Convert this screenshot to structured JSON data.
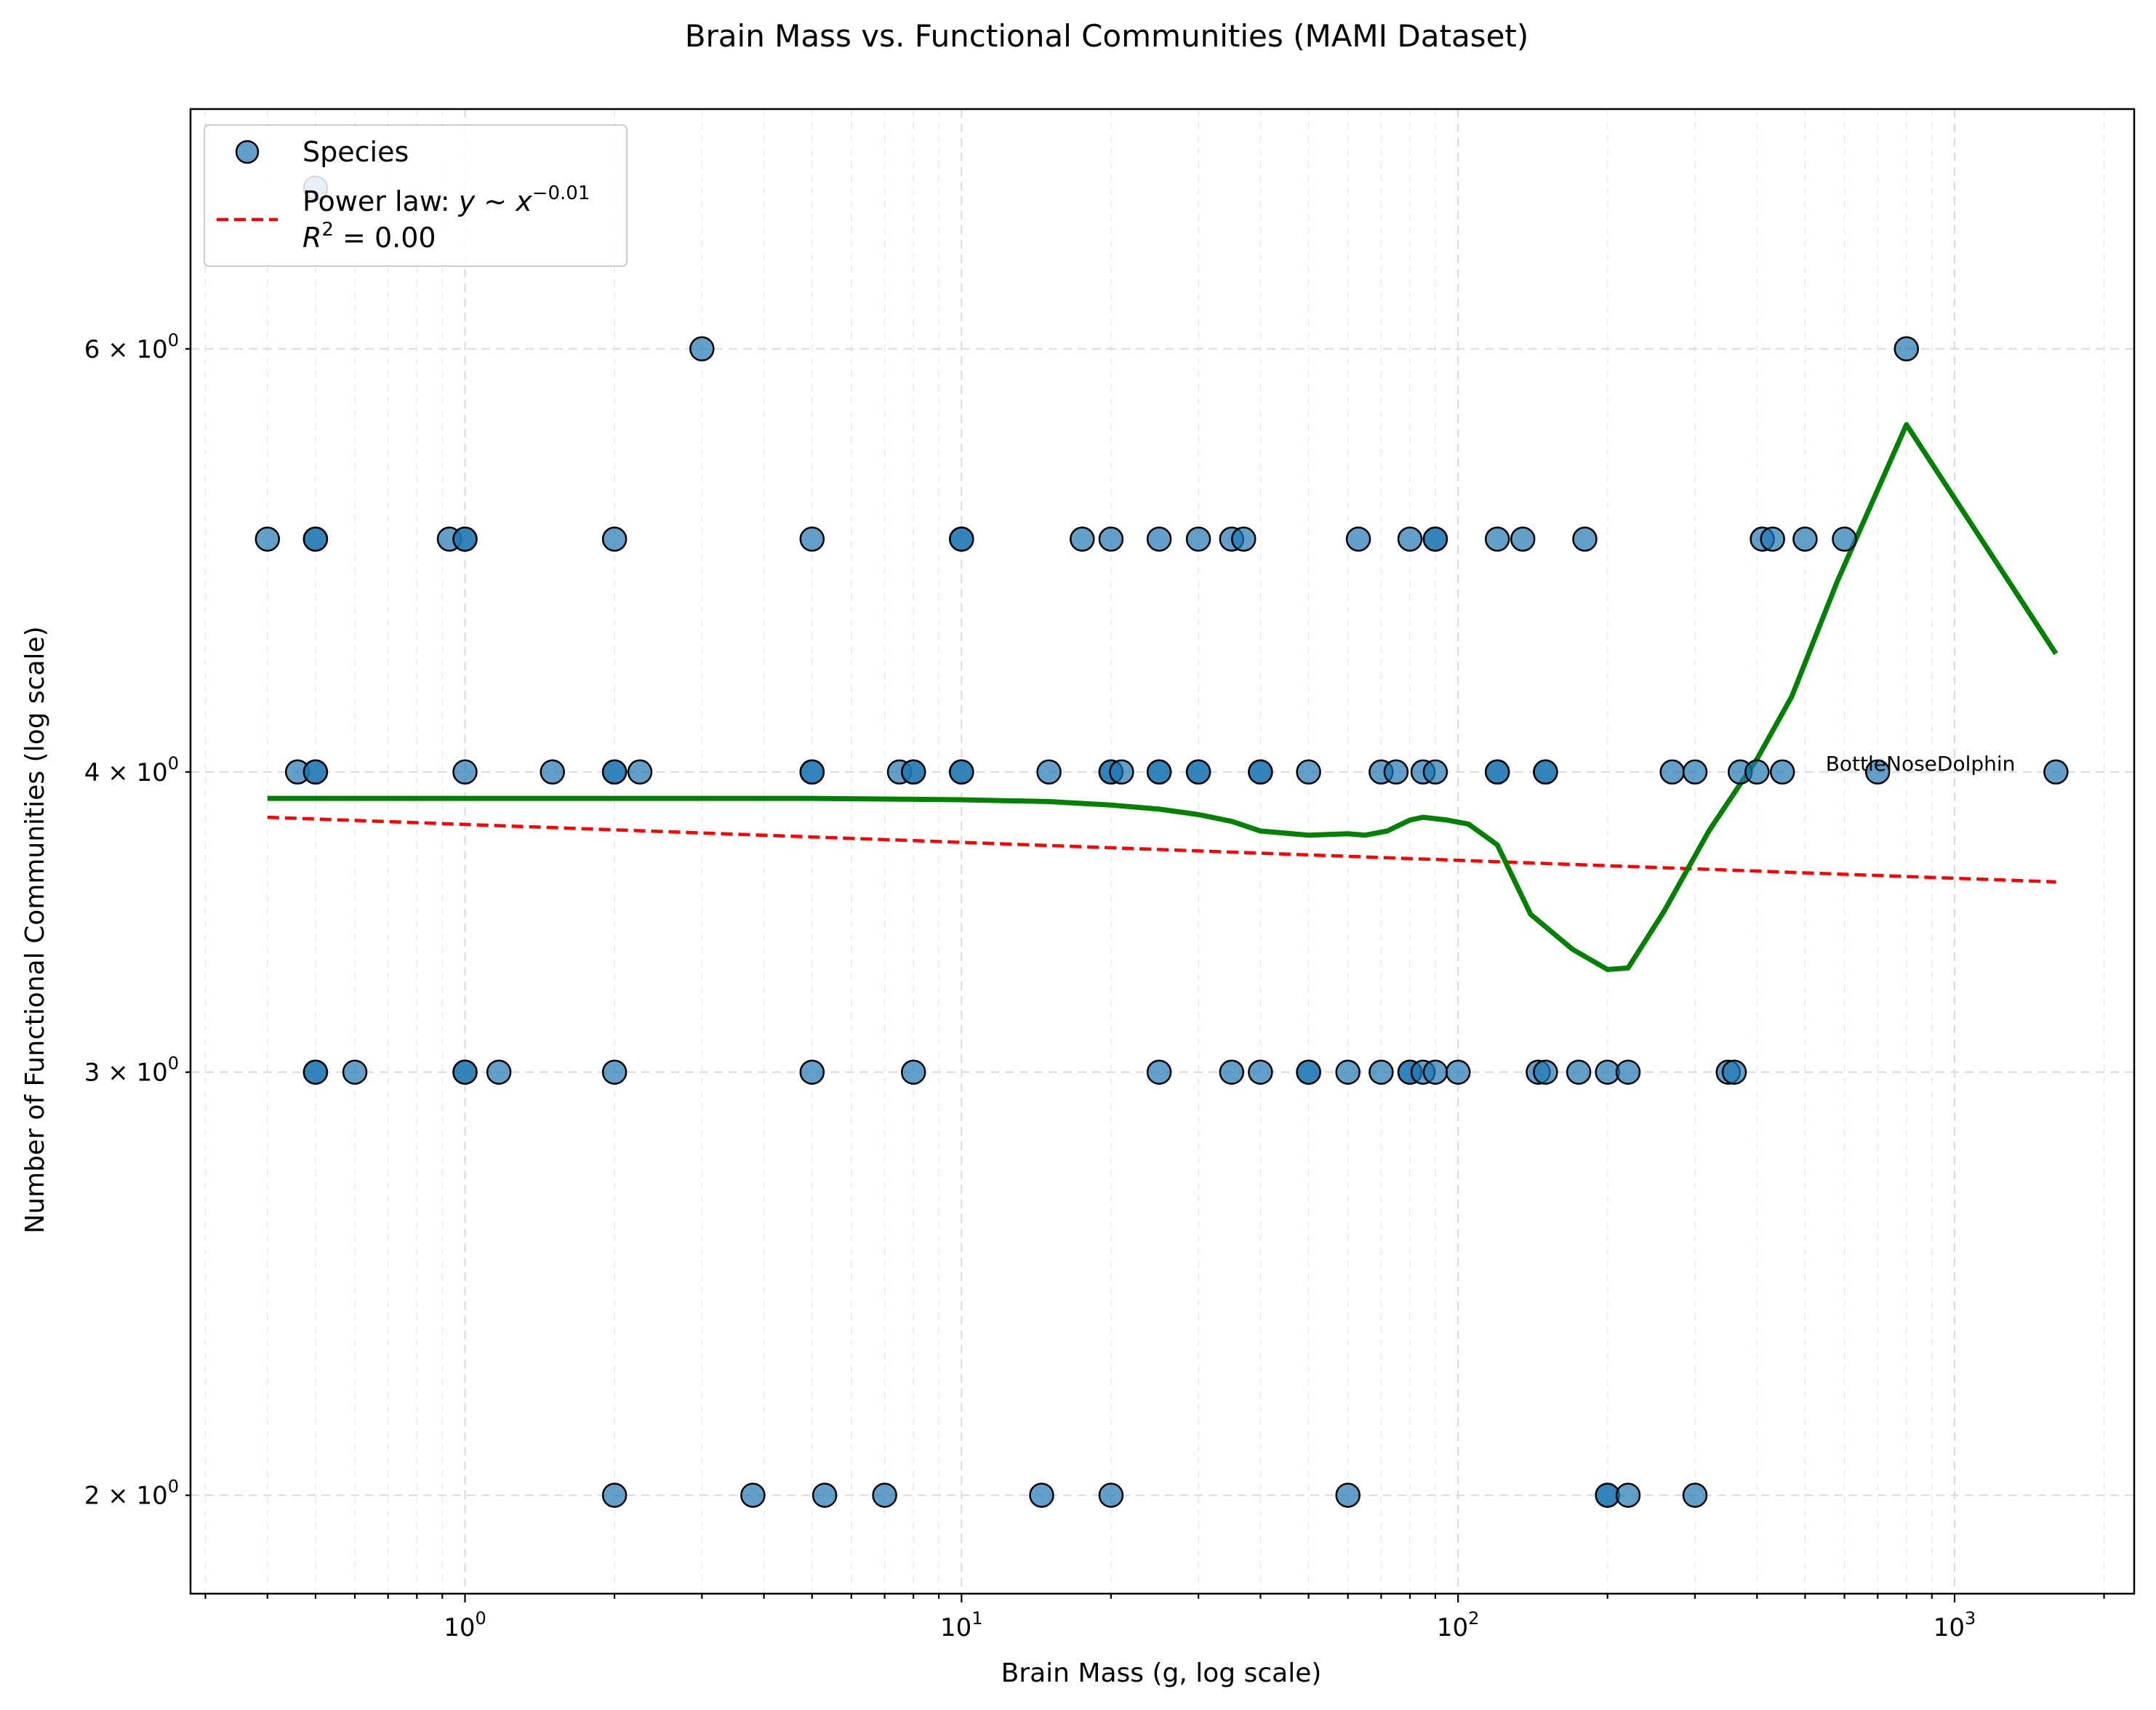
{
  "chart_data": {
    "type": "scatter",
    "title": "Brain Mass vs. Functional Communities (MAMI Dataset)",
    "xlabel": "Brain Mass (g, log scale)",
    "ylabel": "Number of Functional Communities (log scale)",
    "xscale": "log",
    "yscale": "log",
    "xlim": [
      0.28,
      2300
    ],
    "ylim": [
      1.82,
      7.55
    ],
    "grid": true,
    "legend_position": "upper-left",
    "x_tick_labels": [
      {
        "value": 1,
        "base": "10",
        "exp": "0"
      },
      {
        "value": 10,
        "base": "10",
        "exp": "1"
      },
      {
        "value": 100,
        "base": "10",
        "exp": "2"
      },
      {
        "value": 1000,
        "base": "10",
        "exp": "3"
      }
    ],
    "y_tick_labels": [
      {
        "value": 2,
        "mant": "2",
        "base": "10",
        "exp": "0"
      },
      {
        "value": 3,
        "mant": "3",
        "base": "10",
        "exp": "0"
      },
      {
        "value": 4,
        "mant": "4",
        "base": "10",
        "exp": "0"
      },
      {
        "value": 6,
        "mant": "6",
        "base": "10",
        "exp": "0"
      }
    ],
    "series": [
      {
        "name": "Species",
        "kind": "scatter",
        "color": "#1f77b4",
        "points": [
          [
            0.5,
            7
          ],
          [
            3,
            6
          ],
          [
            800,
            6
          ],
          [
            0.4,
            5
          ],
          [
            0.5,
            5
          ],
          [
            0.5,
            5
          ],
          [
            0.93,
            5
          ],
          [
            1,
            5
          ],
          [
            1,
            5
          ],
          [
            2,
            5
          ],
          [
            5,
            5
          ],
          [
            10,
            5
          ],
          [
            10,
            5
          ],
          [
            17.5,
            5
          ],
          [
            20,
            5
          ],
          [
            25,
            5
          ],
          [
            30,
            5
          ],
          [
            35,
            5
          ],
          [
            37,
            5
          ],
          [
            63,
            5
          ],
          [
            80,
            5
          ],
          [
            90,
            5
          ],
          [
            90,
            5
          ],
          [
            120,
            5
          ],
          [
            135,
            5
          ],
          [
            180,
            5
          ],
          [
            410,
            5
          ],
          [
            430,
            5
          ],
          [
            500,
            5
          ],
          [
            600,
            5
          ],
          [
            0.46,
            4
          ],
          [
            0.5,
            4
          ],
          [
            0.5,
            4
          ],
          [
            1,
            4
          ],
          [
            1.5,
            4
          ],
          [
            2,
            4
          ],
          [
            2,
            4
          ],
          [
            2.25,
            4
          ],
          [
            5,
            4
          ],
          [
            5,
            4
          ],
          [
            7.5,
            4
          ],
          [
            8,
            4
          ],
          [
            8,
            4
          ],
          [
            10,
            4
          ],
          [
            10,
            4
          ],
          [
            15,
            4
          ],
          [
            20,
            4
          ],
          [
            20,
            4
          ],
          [
            21,
            4
          ],
          [
            25,
            4
          ],
          [
            25,
            4
          ],
          [
            30,
            4
          ],
          [
            30,
            4
          ],
          [
            40,
            4
          ],
          [
            40,
            4
          ],
          [
            50,
            4
          ],
          [
            70,
            4
          ],
          [
            75,
            4
          ],
          [
            85,
            4
          ],
          [
            90,
            4
          ],
          [
            120,
            4
          ],
          [
            120,
            4
          ],
          [
            150,
            4
          ],
          [
            150,
            4
          ],
          [
            270,
            4
          ],
          [
            300,
            4
          ],
          [
            370,
            4
          ],
          [
            400,
            4
          ],
          [
            450,
            4
          ],
          [
            700,
            4
          ],
          [
            1600,
            4
          ],
          [
            0.5,
            3
          ],
          [
            0.5,
            3
          ],
          [
            0.6,
            3
          ],
          [
            1,
            3
          ],
          [
            1,
            3
          ],
          [
            1.17,
            3
          ],
          [
            2,
            3
          ],
          [
            5,
            3
          ],
          [
            8,
            3
          ],
          [
            25,
            3
          ],
          [
            35,
            3
          ],
          [
            40,
            3
          ],
          [
            50,
            3
          ],
          [
            50,
            3
          ],
          [
            60,
            3
          ],
          [
            70,
            3
          ],
          [
            80,
            3
          ],
          [
            80,
            3
          ],
          [
            85,
            3
          ],
          [
            90,
            3
          ],
          [
            100,
            3
          ],
          [
            145,
            3
          ],
          [
            150,
            3
          ],
          [
            175,
            3
          ],
          [
            200,
            3
          ],
          [
            220,
            3
          ],
          [
            350,
            3
          ],
          [
            360,
            3
          ],
          [
            2,
            2
          ],
          [
            3.8,
            2
          ],
          [
            5.3,
            2
          ],
          [
            7,
            2
          ],
          [
            14.5,
            2
          ],
          [
            20,
            2
          ],
          [
            60,
            2
          ],
          [
            200,
            2
          ],
          [
            200,
            2
          ],
          [
            220,
            2
          ],
          [
            300,
            2
          ]
        ]
      },
      {
        "name": "Power law: y ~ x^-0.01",
        "kind": "line",
        "style": "dashed",
        "color": "#ff0000",
        "points": [
          [
            0.4,
            3.83
          ],
          [
            1600,
            3.6
          ]
        ]
      },
      {
        "name": "",
        "kind": "line",
        "style": "solid",
        "color": "#008000",
        "points": [
          [
            0.4,
            3.9
          ],
          [
            1,
            3.9
          ],
          [
            5,
            3.9
          ],
          [
            10,
            3.895
          ],
          [
            15,
            3.888
          ],
          [
            20,
            3.875
          ],
          [
            25,
            3.86
          ],
          [
            30,
            3.84
          ],
          [
            35,
            3.815
          ],
          [
            40,
            3.78
          ],
          [
            50,
            3.765
          ],
          [
            60,
            3.77
          ],
          [
            65,
            3.765
          ],
          [
            72,
            3.78
          ],
          [
            80,
            3.82
          ],
          [
            85,
            3.83
          ],
          [
            95,
            3.82
          ],
          [
            105,
            3.805
          ],
          [
            120,
            3.73
          ],
          [
            140,
            3.49
          ],
          [
            170,
            3.375
          ],
          [
            200,
            3.31
          ],
          [
            220,
            3.315
          ],
          [
            260,
            3.5
          ],
          [
            320,
            3.78
          ],
          [
            400,
            4.05
          ],
          [
            470,
            4.3
          ],
          [
            580,
            4.8
          ],
          [
            800,
            5.58
          ],
          [
            1600,
            4.48
          ]
        ]
      }
    ],
    "legend": [
      {
        "type": "marker",
        "label": "Species"
      },
      {
        "type": "dashed-line",
        "label_prefix": "Power law: ",
        "formula_lhs": "y ~ x",
        "formula_exp": "−0.01",
        "r2_label": "R",
        "r2_sup": "2",
        "r2_value": " = 0.00"
      }
    ],
    "annotations": [
      {
        "text": "BottleNoseDolphin",
        "x": 550,
        "y": 4
      }
    ]
  }
}
